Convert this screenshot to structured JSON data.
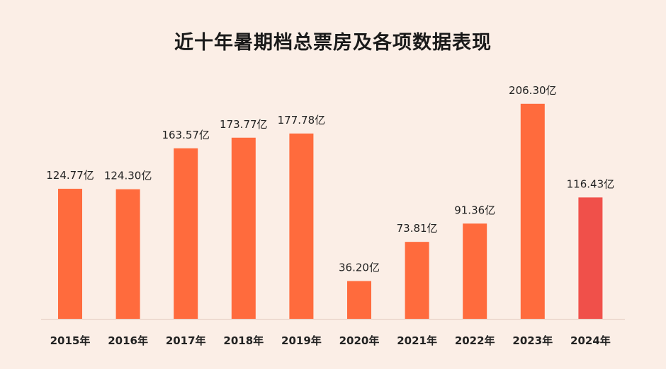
{
  "chart_data": {
    "type": "bar",
    "title": "近十年暑期档总票房及各项数据表现",
    "xlabel": "",
    "ylabel": "",
    "categories": [
      "2015年",
      "2016年",
      "2017年",
      "2018年",
      "2019年",
      "2020年",
      "2021年",
      "2022年",
      "2023年",
      "2024年"
    ],
    "values": [
      124.77,
      124.3,
      163.57,
      173.77,
      177.78,
      36.2,
      73.81,
      91.36,
      206.3,
      116.43
    ],
    "data_labels": [
      "124.77亿",
      "124.30亿",
      "163.57亿",
      "173.77亿",
      "177.78亿",
      "36.20亿",
      "73.81亿",
      "91.36亿",
      "206.30亿",
      "116.43亿"
    ],
    "unit": "亿",
    "ylim": [
      0,
      220
    ],
    "grid": false,
    "legend": "none",
    "colors": {
      "bar": "#ff6b3d",
      "bar_highlight": "#f0504a",
      "axis": "#e2c9bd",
      "background": "#fbeee6"
    },
    "highlight_index": 9
  }
}
